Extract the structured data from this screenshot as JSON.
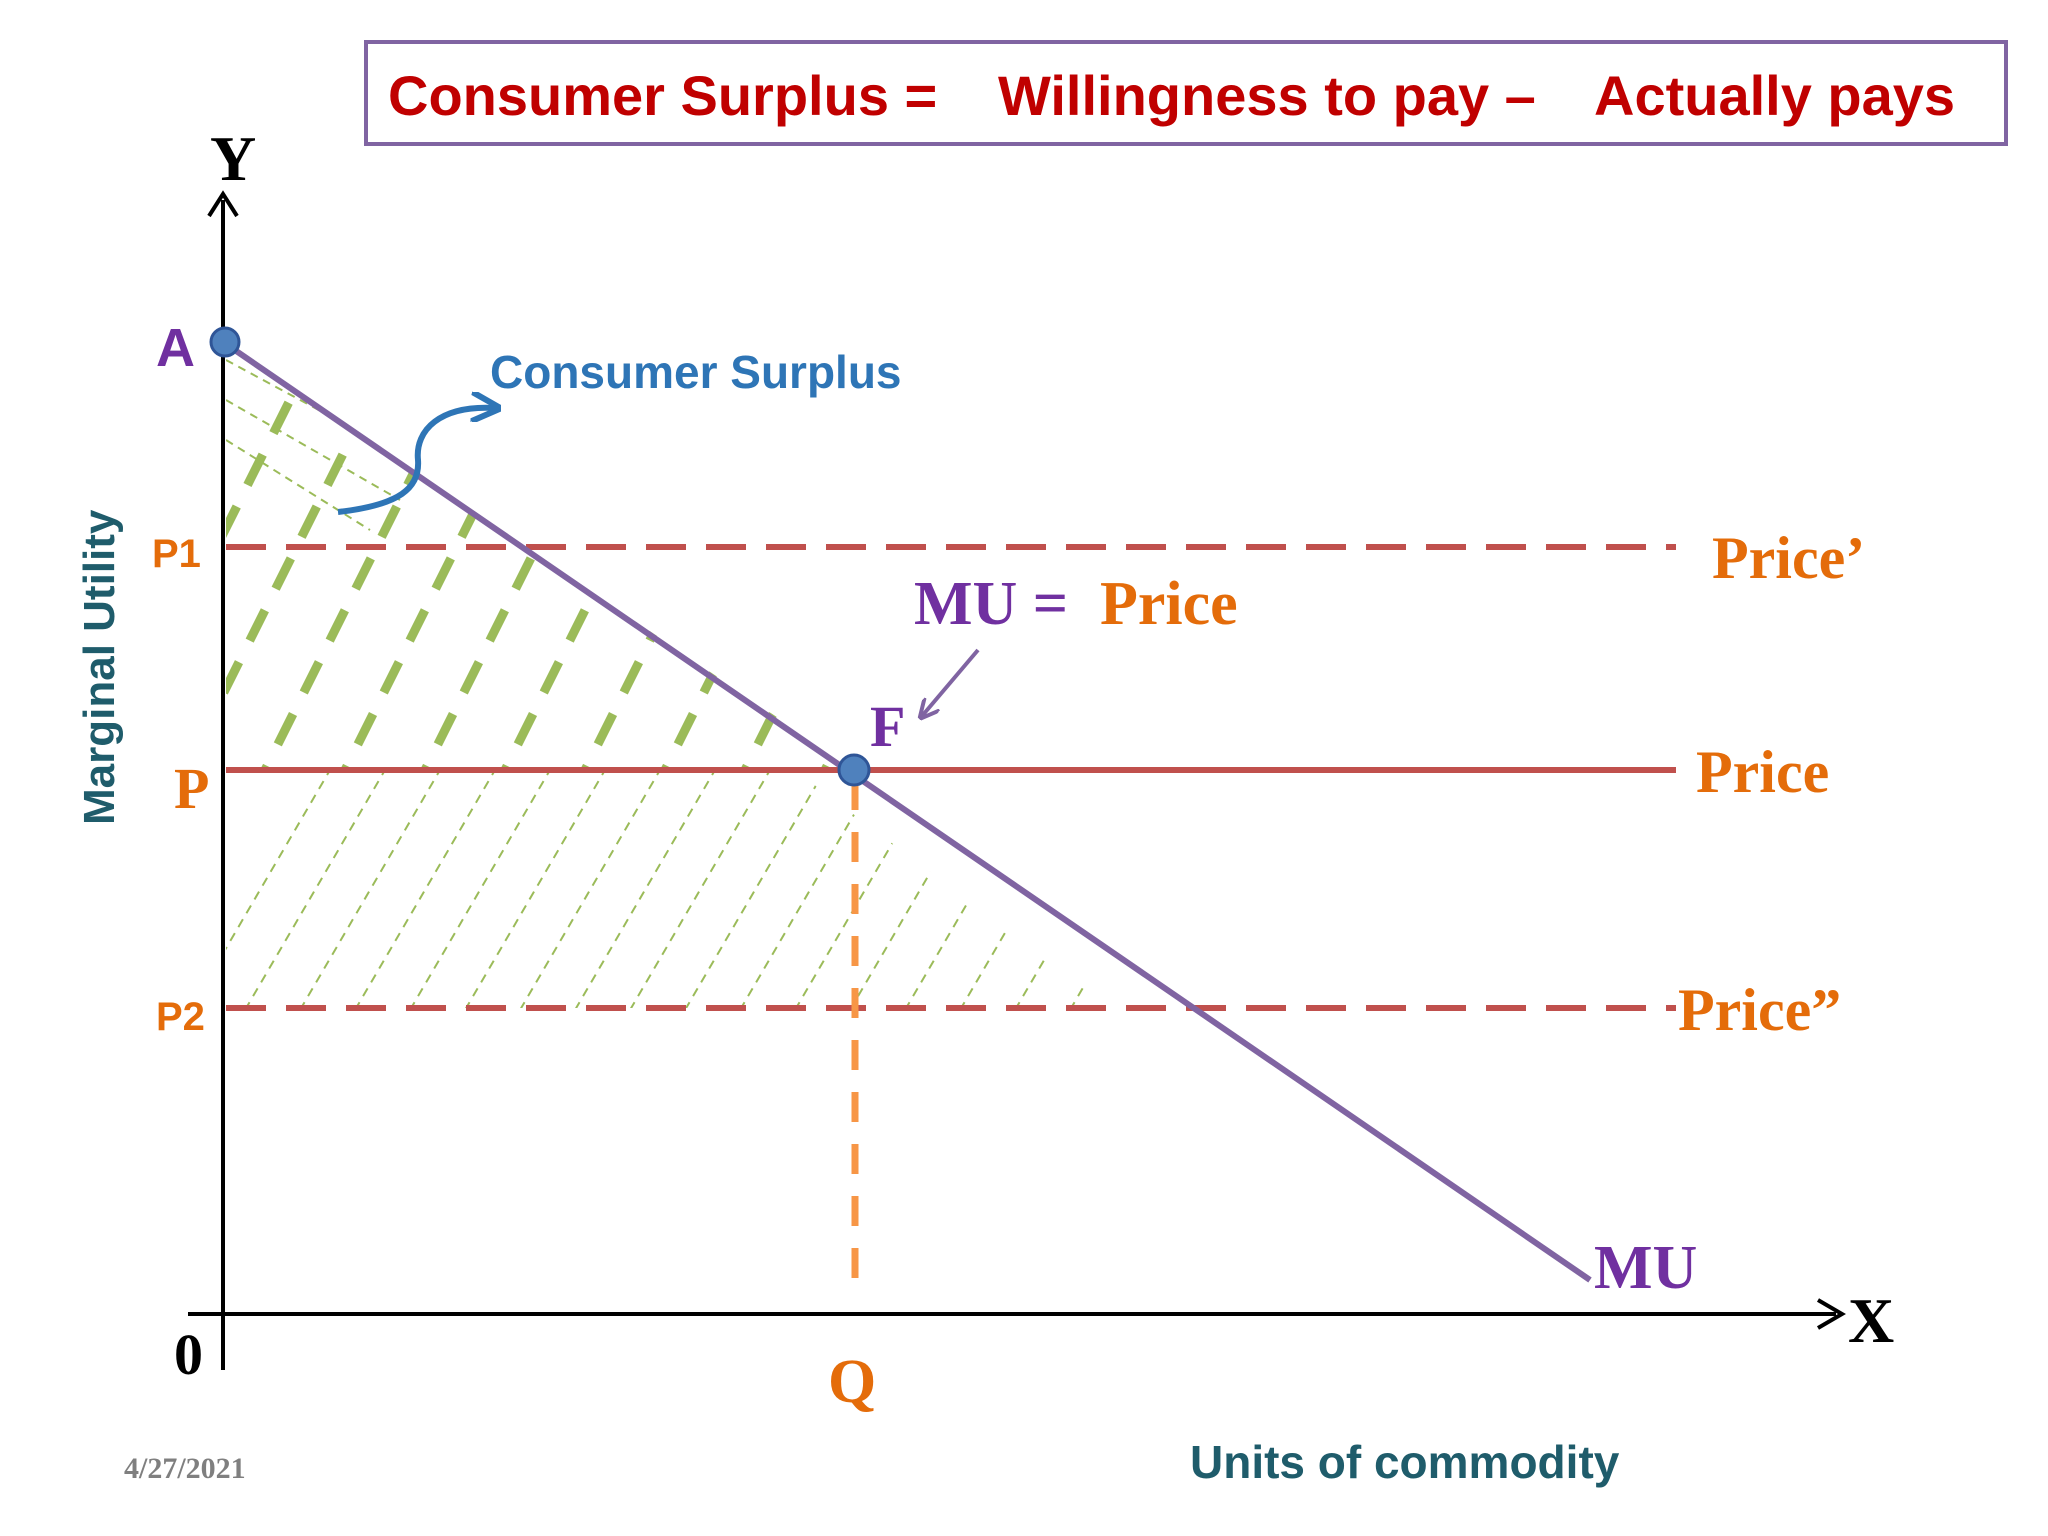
{
  "formula": {
    "left": "Consumer Surplus =",
    "middle": "Willingness to pay –",
    "right": "Actually pays"
  },
  "labels": {
    "y_axis_letter": "Y",
    "x_axis_letter": "X",
    "origin": "0",
    "y_axis_title": "Marginal Utility",
    "x_axis_title": "Units of commodity",
    "point_a": "A",
    "point_f": "F",
    "p1": "P1",
    "p": "P",
    "p2": "P2",
    "q": "Q",
    "price_prime": "Price’",
    "price": "Price",
    "price_double_prime": "Price”",
    "mu_curve": "MU",
    "mu_eq_left": "MU =",
    "mu_eq_right": "Price",
    "consumer_surplus": "Consumer Surplus",
    "date": "4/27/2021"
  },
  "colors": {
    "formula_text": "#c00000",
    "formula_border": "#8064a2",
    "mu_line": "#8064a2",
    "price_line": "#c0504d",
    "orange_label": "#e46c0a",
    "green_hatch": "#9bbb59",
    "blue_accent": "#2e75b6",
    "axis_title": "#1f5c6b",
    "point_fill": "#4f81bd",
    "date_text": "#7f7f7f"
  }
}
